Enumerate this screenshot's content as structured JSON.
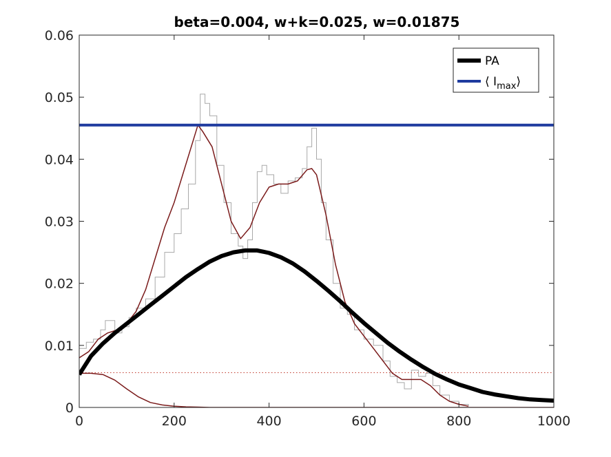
{
  "chart_data": {
    "type": "line",
    "title": "beta=0.004, w+k=0.025, w=0.01875",
    "xlabel": "",
    "ylabel": "",
    "xlim": [
      0,
      1000
    ],
    "ylim": [
      0,
      0.06
    ],
    "x_ticks": [
      0,
      200,
      400,
      600,
      800,
      1000
    ],
    "x_tick_labels": [
      "0",
      "200",
      "400",
      "600",
      "800",
      "1000"
    ],
    "y_ticks": [
      0,
      0.01,
      0.02,
      0.03,
      0.04,
      0.05,
      0.06
    ],
    "y_tick_labels": [
      "0",
      "0.01",
      "0.02",
      "0.03",
      "0.04",
      "0.05",
      "0.06"
    ],
    "grid": false,
    "legend_position": "top-right",
    "colors": {
      "pa": "#000000",
      "imax": "#1f3b9f",
      "smooth": "#7a1a1a",
      "noisy": "#a8a8a8",
      "threshold": "#c0392b",
      "axes": "#262626"
    },
    "legend": [
      {
        "series": "pa",
        "name_main": "PA",
        "name_sub": ""
      },
      {
        "series": "imax",
        "name_main": "⟨ I",
        "name_sub": "max",
        "name_tail": "⟩"
      }
    ],
    "series": [
      {
        "id": "pa",
        "name": "PA",
        "x": [
          0,
          25,
          50,
          75,
          100,
          125,
          150,
          175,
          200,
          225,
          250,
          275,
          300,
          325,
          350,
          375,
          400,
          425,
          450,
          475,
          500,
          525,
          550,
          575,
          600,
          625,
          650,
          675,
          700,
          725,
          750,
          775,
          800,
          825,
          850,
          875,
          900,
          925,
          950,
          975,
          1000
        ],
        "y": [
          0.0053,
          0.0083,
          0.0103,
          0.012,
          0.0135,
          0.015,
          0.0165,
          0.018,
          0.0195,
          0.021,
          0.0223,
          0.0235,
          0.0244,
          0.025,
          0.0253,
          0.0253,
          0.0249,
          0.0242,
          0.0232,
          0.0219,
          0.0204,
          0.0188,
          0.0171,
          0.0153,
          0.0136,
          0.012,
          0.0104,
          0.009,
          0.0077,
          0.0065,
          0.0054,
          0.0045,
          0.0037,
          0.0031,
          0.0025,
          0.0021,
          0.0018,
          0.0015,
          0.0013,
          0.0012,
          0.0011
        ]
      },
      {
        "id": "imax",
        "name": "⟨ Imax⟩",
        "x": [
          0,
          1000
        ],
        "y": [
          0.0455,
          0.0455
        ]
      },
      {
        "id": "smooth_main",
        "x": [
          0,
          20,
          40,
          60,
          80,
          100,
          120,
          140,
          160,
          180,
          200,
          220,
          240,
          250,
          260,
          280,
          300,
          320,
          340,
          360,
          380,
          400,
          420,
          440,
          460,
          480,
          490,
          500,
          520,
          540,
          560,
          580,
          600,
          620,
          640,
          660,
          680,
          700,
          720,
          740,
          760,
          780,
          800,
          820
        ],
        "y": [
          0.008,
          0.009,
          0.011,
          0.012,
          0.0125,
          0.0135,
          0.0155,
          0.019,
          0.024,
          0.029,
          0.033,
          0.038,
          0.043,
          0.0455,
          0.0445,
          0.042,
          0.036,
          0.03,
          0.0272,
          0.029,
          0.033,
          0.0355,
          0.036,
          0.036,
          0.0365,
          0.0383,
          0.0385,
          0.0375,
          0.031,
          0.023,
          0.017,
          0.0135,
          0.0115,
          0.0095,
          0.0075,
          0.0055,
          0.0045,
          0.0045,
          0.0045,
          0.0035,
          0.002,
          0.001,
          0.0005,
          0.0002
        ]
      },
      {
        "id": "smooth_decay",
        "x": [
          0,
          25,
          50,
          75,
          100,
          125,
          150,
          175,
          200,
          225,
          250,
          275,
          300,
          400,
          600,
          800,
          1000
        ],
        "y": [
          0.0055,
          0.0055,
          0.0053,
          0.0044,
          0.003,
          0.0017,
          0.0008,
          0.0004,
          0.0002,
          0.0001,
          5e-05,
          0.0,
          0.0,
          0.0,
          0.0,
          0.0,
          0.0
        ]
      },
      {
        "id": "noisy",
        "x": [
          0,
          15,
          30,
          45,
          55,
          65,
          75,
          90,
          105,
          120,
          140,
          160,
          180,
          200,
          215,
          230,
          245,
          255,
          265,
          275,
          290,
          305,
          320,
          335,
          345,
          355,
          365,
          375,
          385,
          395,
          410,
          425,
          440,
          455,
          470,
          480,
          490,
          500,
          510,
          520,
          535,
          550,
          565,
          580,
          600,
          620,
          640,
          655,
          670,
          685,
          700,
          715,
          730,
          745,
          760,
          780,
          800,
          820
        ],
        "y": [
          0.0095,
          0.0105,
          0.011,
          0.0125,
          0.014,
          0.014,
          0.012,
          0.013,
          0.0145,
          0.016,
          0.0175,
          0.021,
          0.025,
          0.028,
          0.032,
          0.036,
          0.043,
          0.0505,
          0.049,
          0.047,
          0.039,
          0.033,
          0.028,
          0.026,
          0.024,
          0.027,
          0.033,
          0.038,
          0.039,
          0.0375,
          0.036,
          0.0345,
          0.0365,
          0.037,
          0.0385,
          0.042,
          0.045,
          0.04,
          0.033,
          0.027,
          0.02,
          0.016,
          0.015,
          0.0125,
          0.011,
          0.01,
          0.0075,
          0.005,
          0.004,
          0.003,
          0.006,
          0.005,
          0.0055,
          0.0035,
          0.002,
          0.001,
          0.0005,
          0.0002
        ]
      },
      {
        "id": "threshold",
        "x": [
          0,
          1000
        ],
        "y": [
          0.0056,
          0.0056
        ]
      }
    ]
  }
}
